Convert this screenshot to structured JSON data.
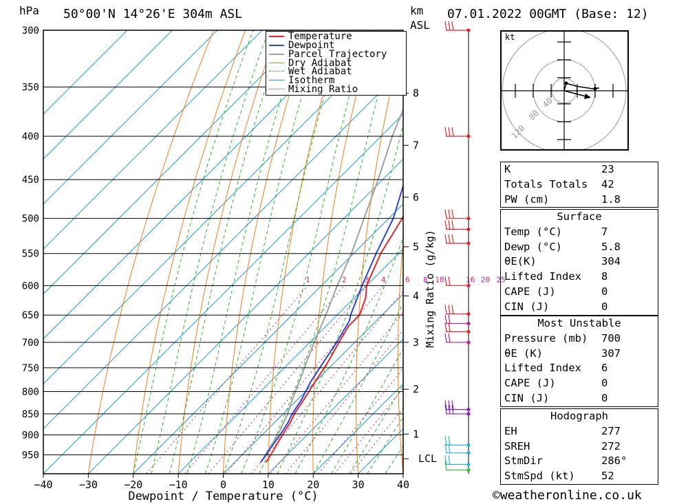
{
  "header": {
    "hpa_label": "hPa",
    "location": "50°00'N 14°26'E 304m ASL",
    "km_label": "km",
    "asl_label": "ASL",
    "date": "07.01.2022 00GMT (Base: 12)"
  },
  "chart_data": {
    "type": "skew-t log-p sounding",
    "xlabel": "Dewpoint / Temperature (°C)",
    "ylabel": "hPa",
    "right_axis_label": "Mixing Ratio (g/kg)",
    "x_ticks": [
      -40,
      -30,
      -20,
      -10,
      0,
      10,
      20,
      30,
      40
    ],
    "x_tick_labels": [
      "−40",
      "−30",
      "−20",
      "−10",
      "0",
      "10",
      "20",
      "30",
      "40"
    ],
    "pressure_levels": [
      300,
      350,
      400,
      450,
      500,
      550,
      600,
      650,
      700,
      750,
      800,
      850,
      900,
      950
    ],
    "pressure_range": [
      300,
      1000
    ],
    "height_ticks_km": [
      {
        "label": "8",
        "p": 356
      },
      {
        "label": "7",
        "p": 410
      },
      {
        "label": "6",
        "p": 472
      },
      {
        "label": "5",
        "p": 540
      },
      {
        "label": "4",
        "p": 617
      },
      {
        "label": "3",
        "p": 700
      },
      {
        "label": "2",
        "p": 795
      },
      {
        "label": "1",
        "p": 898
      },
      {
        "label": "LCL",
        "p": 960
      }
    ],
    "mixing_ratio_labels": [
      "1",
      "2",
      "3",
      "4",
      "6",
      "8",
      "10",
      "16",
      "20",
      "25"
    ],
    "legend": [
      "Temperature",
      "Dewpoint",
      "Parcel Trajectory",
      "Dry Adiabat",
      "Wet Adiabat",
      "Isotherm",
      "Mixing Ratio"
    ],
    "legend_position": "top-right",
    "series": [
      {
        "name": "Temperature",
        "color": "#e8242a",
        "points": [
          [
            7,
            970
          ],
          [
            6,
            940
          ],
          [
            4.5,
            900
          ],
          [
            3.5,
            870
          ],
          [
            2.5,
            850
          ],
          [
            1.5,
            820
          ],
          [
            0,
            780
          ],
          [
            -1.5,
            740
          ],
          [
            -3.5,
            700
          ],
          [
            -5,
            670
          ],
          [
            -5,
            650
          ],
          [
            -7.5,
            620
          ],
          [
            -10,
            600
          ],
          [
            -14,
            550
          ],
          [
            -17,
            500
          ],
          [
            -22,
            450
          ],
          [
            -27,
            400
          ],
          [
            -34,
            350
          ],
          [
            -42,
            300
          ]
        ]
      },
      {
        "name": "Dewpoint",
        "color": "#2c47d8",
        "points": [
          [
            5.8,
            970
          ],
          [
            5,
            940
          ],
          [
            4,
            900
          ],
          [
            3,
            870
          ],
          [
            2,
            850
          ],
          [
            1,
            820
          ],
          [
            -1,
            780
          ],
          [
            -2.5,
            740
          ],
          [
            -4,
            700
          ],
          [
            -6,
            660
          ],
          [
            -7,
            650
          ],
          [
            -11,
            600
          ],
          [
            -15,
            550
          ],
          [
            -19,
            500
          ],
          [
            -25,
            450
          ],
          [
            -30,
            400
          ],
          [
            -39,
            350
          ],
          [
            -49,
            300
          ]
        ]
      },
      {
        "name": "Parcel Trajectory",
        "color": "#a0a0a0",
        "points": [
          [
            5.6,
            960
          ],
          [
            4.8,
            940
          ],
          [
            3.5,
            900
          ],
          [
            2,
            870
          ],
          [
            1,
            850
          ],
          [
            -1,
            820
          ],
          [
            -3.5,
            780
          ],
          [
            -6.2,
            740
          ],
          [
            -9,
            700
          ],
          [
            -12.5,
            650
          ],
          [
            -16.5,
            600
          ],
          [
            -20.5,
            550
          ],
          [
            -25.5,
            500
          ],
          [
            -31,
            450
          ],
          [
            -37.5,
            400
          ],
          [
            -44,
            350
          ],
          [
            -52,
            300
          ]
        ]
      }
    ],
    "isotherm_color": "#1d9ae0",
    "dry_adiabat_color": "#f07c1c",
    "wet_adiabat_color": "#27b521",
    "mixing_ratio_color": "#c02080"
  },
  "legend_labels": {
    "temperature": "Temperature",
    "dewpoint": "Dewpoint",
    "parcel": "Parcel Trajectory",
    "dry": "Dry Adiabat",
    "wet": "Wet Adiabat",
    "isotherm": "Isotherm",
    "mixing": "Mixing Ratio"
  },
  "hodograph": {
    "unit_label": "kt",
    "ring_labels": [
      "40",
      "80",
      "120"
    ]
  },
  "indices": {
    "k_label": "K",
    "k_value": "23",
    "tt_label": "Totals Totals",
    "tt_value": "42",
    "pw_label": "PW (cm)",
    "pw_value": "1.8"
  },
  "surface": {
    "title": "Surface",
    "temp_label": "Temp (°C)",
    "temp_value": "7",
    "dewp_label": "Dewp (°C)",
    "dewp_value": "5.8",
    "theta_label": "θE(K)",
    "theta_value": "304",
    "li_label": "Lifted Index",
    "li_value": "8",
    "cape_label": "CAPE (J)",
    "cape_value": "0",
    "cin_label": "CIN (J)",
    "cin_value": "0"
  },
  "most_unstable": {
    "title": "Most Unstable",
    "pressure_label": "Pressure (mb)",
    "pressure_value": "700",
    "theta_label": "θE (K)",
    "theta_value": "307",
    "li_label": "Lifted Index",
    "li_value": "6",
    "cape_label": "CAPE (J)",
    "cape_value": "0",
    "cin_label": "CIN (J)",
    "cin_value": "0"
  },
  "hodograph_table": {
    "title": "Hodograph",
    "eh_label": "EH",
    "eh_value": "277",
    "sreh_label": "SREH",
    "sreh_value": "272",
    "stmdir_label": "StmDir",
    "stmdir_value": "286°",
    "stmspd_label": "StmSpd (kt)",
    "stmspd_value": "52"
  },
  "credit": "©weatheronline.co.uk"
}
